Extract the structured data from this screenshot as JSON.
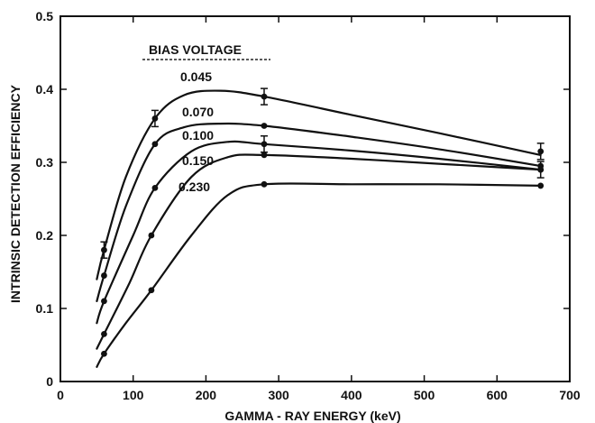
{
  "chart_data": {
    "type": "line",
    "xlabel": "GAMMA - RAY ENERGY (keV)",
    "ylabel": "INTRINSIC DETECTION EFFICIENCY",
    "xlim": [
      0,
      700
    ],
    "ylim": [
      0,
      0.5
    ],
    "x_ticks": [
      {
        "value": 0,
        "label": "0"
      },
      {
        "value": 100,
        "label": "100"
      },
      {
        "value": 200,
        "label": "200"
      },
      {
        "value": 300,
        "label": "300"
      },
      {
        "value": 400,
        "label": "400"
      },
      {
        "value": 500,
        "label": "500"
      },
      {
        "value": 600,
        "label": "600"
      },
      {
        "value": 700,
        "label": "700"
      }
    ],
    "y_ticks": [
      {
        "value": 0,
        "label": "0"
      },
      {
        "value": 0.1,
        "label": "0.1"
      },
      {
        "value": 0.2,
        "label": "0.2"
      },
      {
        "value": 0.3,
        "label": "0.3"
      },
      {
        "value": 0.4,
        "label": "0.4"
      },
      {
        "value": 0.5,
        "label": "0.5"
      }
    ],
    "grid": false,
    "legend_title": "BIAS VOLTAGE",
    "series": [
      {
        "name": "0.045",
        "points": [
          [
            60,
            0.18
          ],
          [
            130,
            0.36
          ],
          [
            280,
            0.39
          ],
          [
            660,
            0.315
          ]
        ],
        "curve": [
          [
            50,
            0.14
          ],
          [
            60,
            0.18
          ],
          [
            90,
            0.28
          ],
          [
            130,
            0.36
          ],
          [
            170,
            0.392
          ],
          [
            220,
            0.398
          ],
          [
            280,
            0.39
          ],
          [
            400,
            0.365
          ],
          [
            520,
            0.34
          ],
          [
            660,
            0.31
          ]
        ]
      },
      {
        "name": "0.070",
        "points": [
          [
            60,
            0.145
          ],
          [
            130,
            0.325
          ],
          [
            280,
            0.35
          ],
          [
            660,
            0.295
          ]
        ],
        "curve": [
          [
            50,
            0.11
          ],
          [
            60,
            0.145
          ],
          [
            90,
            0.24
          ],
          [
            130,
            0.325
          ],
          [
            170,
            0.348
          ],
          [
            220,
            0.353
          ],
          [
            280,
            0.35
          ],
          [
            400,
            0.335
          ],
          [
            520,
            0.318
          ],
          [
            660,
            0.295
          ]
        ]
      },
      {
        "name": "0.100",
        "points": [
          [
            60,
            0.11
          ],
          [
            130,
            0.265
          ],
          [
            280,
            0.325
          ],
          [
            660,
            0.29
          ]
        ],
        "curve": [
          [
            50,
            0.08
          ],
          [
            60,
            0.11
          ],
          [
            100,
            0.2
          ],
          [
            130,
            0.265
          ],
          [
            180,
            0.315
          ],
          [
            230,
            0.328
          ],
          [
            280,
            0.325
          ],
          [
            400,
            0.316
          ],
          [
            520,
            0.305
          ],
          [
            660,
            0.29
          ]
        ]
      },
      {
        "name": "0.150",
        "points": [
          [
            60,
            0.065
          ],
          [
            125,
            0.2
          ],
          [
            280,
            0.31
          ],
          [
            660,
            0.29
          ]
        ],
        "curve": [
          [
            50,
            0.045
          ],
          [
            60,
            0.065
          ],
          [
            95,
            0.135
          ],
          [
            125,
            0.2
          ],
          [
            180,
            0.28
          ],
          [
            230,
            0.307
          ],
          [
            280,
            0.31
          ],
          [
            400,
            0.305
          ],
          [
            520,
            0.298
          ],
          [
            660,
            0.29
          ]
        ]
      },
      {
        "name": "0.230",
        "points": [
          [
            60,
            0.038
          ],
          [
            125,
            0.125
          ],
          [
            280,
            0.27
          ],
          [
            660,
            0.268
          ]
        ],
        "curve": [
          [
            50,
            0.02
          ],
          [
            60,
            0.038
          ],
          [
            90,
            0.08
          ],
          [
            125,
            0.125
          ],
          [
            180,
            0.2
          ],
          [
            230,
            0.255
          ],
          [
            280,
            0.27
          ],
          [
            400,
            0.27
          ],
          [
            520,
            0.27
          ],
          [
            660,
            0.268
          ]
        ]
      }
    ]
  }
}
